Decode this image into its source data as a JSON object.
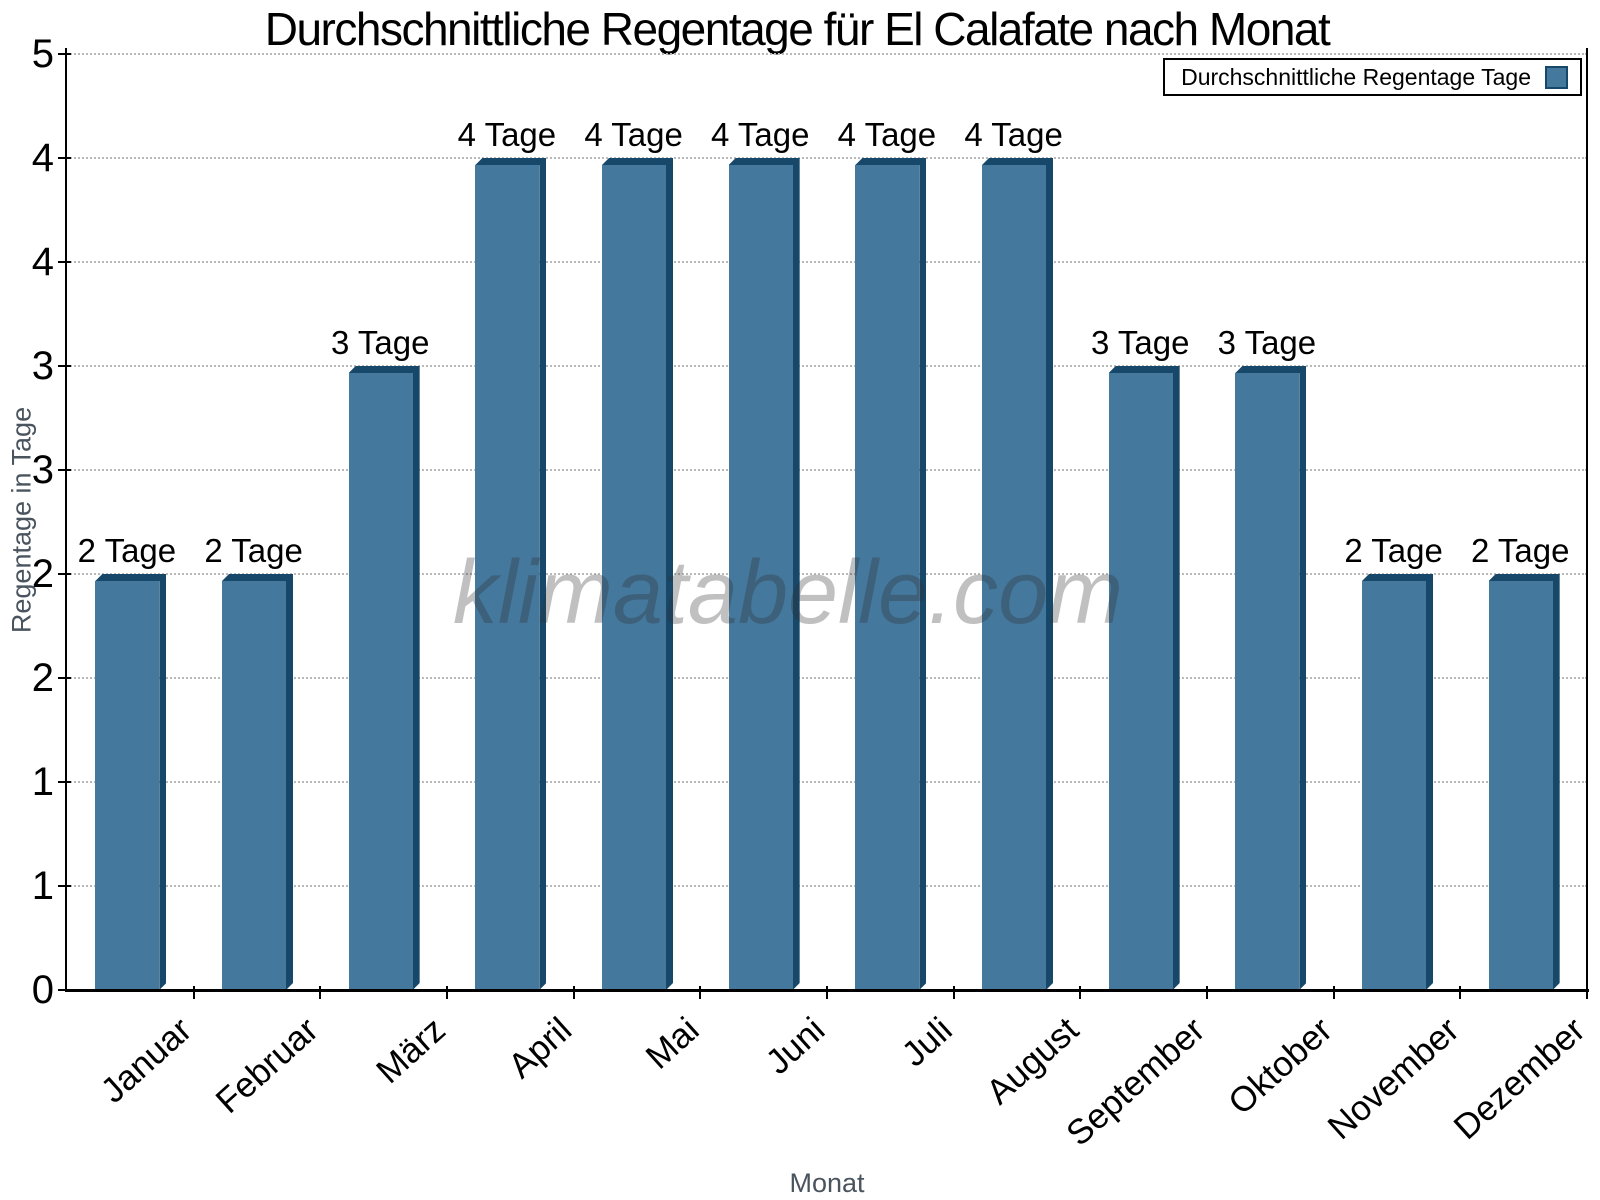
{
  "chart_data": {
    "type": "bar",
    "title": "Durchschnittliche Regentage für El Calafate nach Monat",
    "xlabel": "Monat",
    "ylabel": "Regentage in Tage",
    "legend": {
      "label": "Durchschnittliche Regentage Tage",
      "position": "top-right"
    },
    "watermark": "klimatabelle.com",
    "categories": [
      "Januar",
      "Februar",
      "März",
      "April",
      "Mai",
      "Juni",
      "Juli",
      "August",
      "September",
      "Oktober",
      "November",
      "Dezember"
    ],
    "series": [
      {
        "name": "Durchschnittliche Regentage",
        "unit": "Tage",
        "values": [
          2,
          2,
          3,
          4,
          4,
          4,
          4,
          4,
          3,
          3,
          2,
          2
        ]
      }
    ],
    "data_labels": [
      "2 Tage",
      "2 Tage",
      "3 Tage",
      "4 Tage",
      "4 Tage",
      "4 Tage",
      "4 Tage",
      "4 Tage",
      "3 Tage",
      "3 Tage",
      "2 Tage",
      "2 Tage"
    ],
    "ylim": [
      0,
      4.5
    ],
    "y_tick_step": 0.5,
    "y_tick_labels_bottom_to_top": [
      "0",
      "1",
      "1",
      "2",
      "2",
      "3",
      "3",
      "4",
      "4",
      "5"
    ],
    "grid": "horizontal-dotted",
    "colors": {
      "bar_face": "#44789D",
      "bar_shade": "#17486A",
      "grid": "#b9b9b9",
      "axis": "#000000",
      "axis_title_text": "#4A545E",
      "watermark_text": "#2d2d2d"
    }
  }
}
